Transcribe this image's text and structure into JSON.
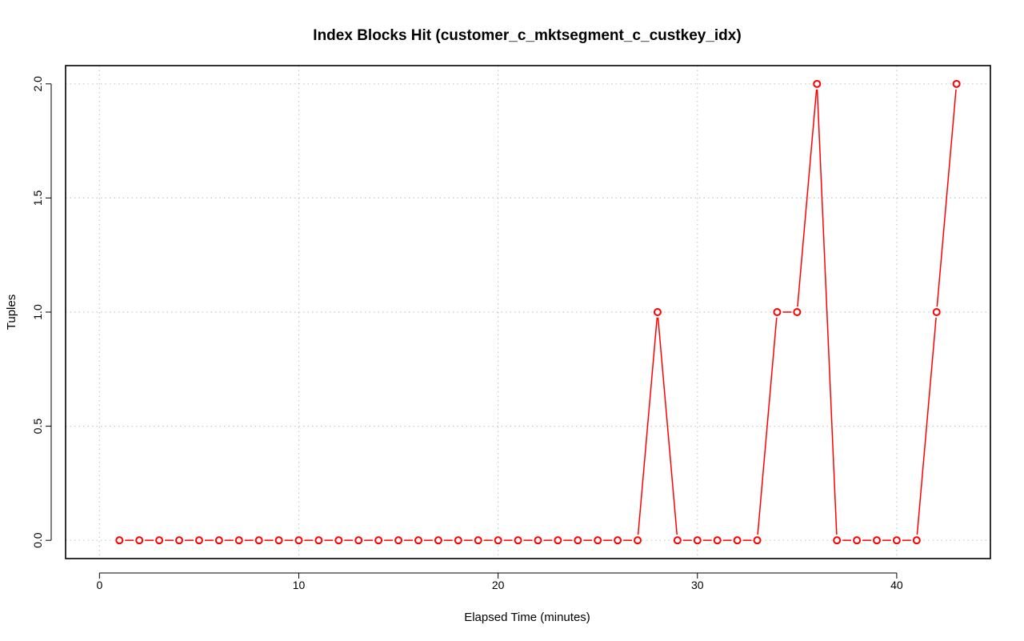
{
  "chart_data": {
    "type": "line",
    "title": "Index Blocks Hit (customer_c_mktsegment_c_custkey_idx)",
    "xlabel": "Elapsed Time (minutes)",
    "ylabel": "Tuples",
    "xlim": [
      -1.7,
      44.7
    ],
    "ylim": [
      -0.08,
      2.08
    ],
    "x_ticks": [
      0,
      10,
      20,
      30,
      40
    ],
    "y_ticks": [
      0.0,
      0.5,
      1.0,
      1.5,
      2.0
    ],
    "x_tick_labels": [
      "0",
      "10",
      "20",
      "30",
      "40"
    ],
    "y_tick_labels": [
      "0.0",
      "0.5",
      "1.0",
      "1.5",
      "2.0"
    ],
    "grid": true,
    "legend": "none",
    "series": [
      {
        "color": "#ff0000",
        "marker": "open-circle",
        "x": [
          1,
          2,
          3,
          4,
          5,
          6,
          7,
          8,
          9,
          10,
          11,
          12,
          13,
          14,
          15,
          16,
          17,
          18,
          19,
          20,
          21,
          22,
          23,
          24,
          25,
          26,
          27,
          28,
          29,
          30,
          31,
          32,
          33,
          34,
          35,
          36,
          37,
          38,
          39,
          40,
          41,
          42,
          43
        ],
        "y": [
          0,
          0,
          0,
          0,
          0,
          0,
          0,
          0,
          0,
          0,
          0,
          0,
          0,
          0,
          0,
          0,
          0,
          0,
          0,
          0,
          0,
          0,
          0,
          0,
          0,
          0,
          0,
          1,
          0,
          0,
          0,
          0,
          0,
          1,
          1,
          2,
          0,
          0,
          0,
          0,
          0,
          1,
          2
        ]
      }
    ]
  }
}
